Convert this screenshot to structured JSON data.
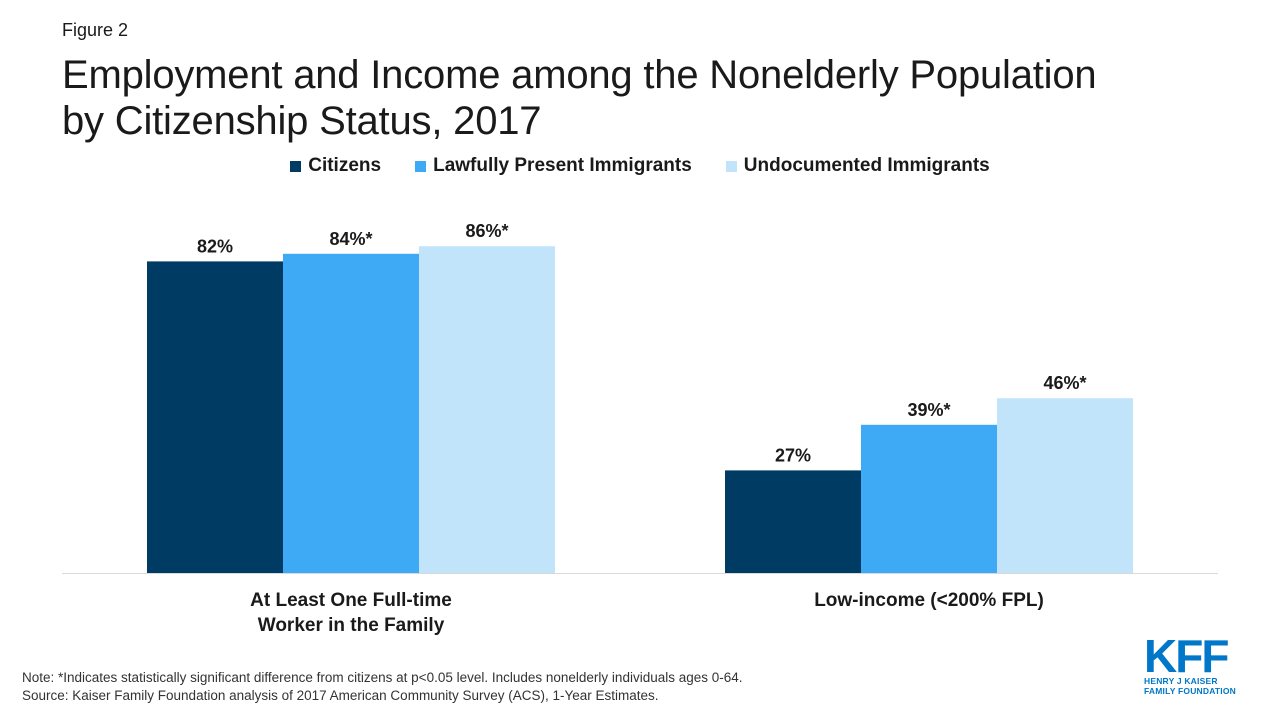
{
  "figure_label": "Figure 2",
  "title_line1": "Employment and Income among the Nonelderly Population",
  "title_line2": "by Citizenship Status, 2017",
  "colors": {
    "citizens": "#003b63",
    "lawful": "#3ea9f5",
    "undocumented": "#c2e4fb",
    "axis": "#d9d9d9",
    "text": "#1a1a1a",
    "brand": "#0077c8"
  },
  "legend": [
    {
      "label": "Citizens",
      "color": "#003b63"
    },
    {
      "label": "Lawfully Present Immigrants",
      "color": "#3ea9f5"
    },
    {
      "label": "Undocumented Immigrants",
      "color": "#c2e4fb"
    }
  ],
  "chart_data": {
    "type": "bar",
    "categories": [
      [
        "At Least One Full-time",
        "Worker in the Family"
      ],
      [
        "Low-income (<200% FPL)"
      ]
    ],
    "series": [
      {
        "name": "Citizens",
        "values": [
          82,
          27
        ],
        "labels": [
          "82%",
          "27%"
        ]
      },
      {
        "name": "Lawfully Present Immigrants",
        "values": [
          84,
          39
        ],
        "labels": [
          "84%*",
          "39%*"
        ]
      },
      {
        "name": "Undocumented Immigrants",
        "values": [
          86,
          46
        ],
        "labels": [
          "86%*",
          "46%*"
        ]
      }
    ],
    "ylim": [
      0,
      100
    ],
    "grid": false,
    "legend_position": "top"
  },
  "note_line1": "Note: *Indicates statistically significant difference from citizens at p<0.05 level. Includes nonelderly individuals ages 0-64.",
  "note_line2": "Source: Kaiser Family Foundation analysis of 2017 American Community Survey (ACS), 1-Year Estimates.",
  "logo": {
    "mark": "KFF",
    "sub1": "HENRY J KAISER",
    "sub2": "FAMILY FOUNDATION"
  }
}
